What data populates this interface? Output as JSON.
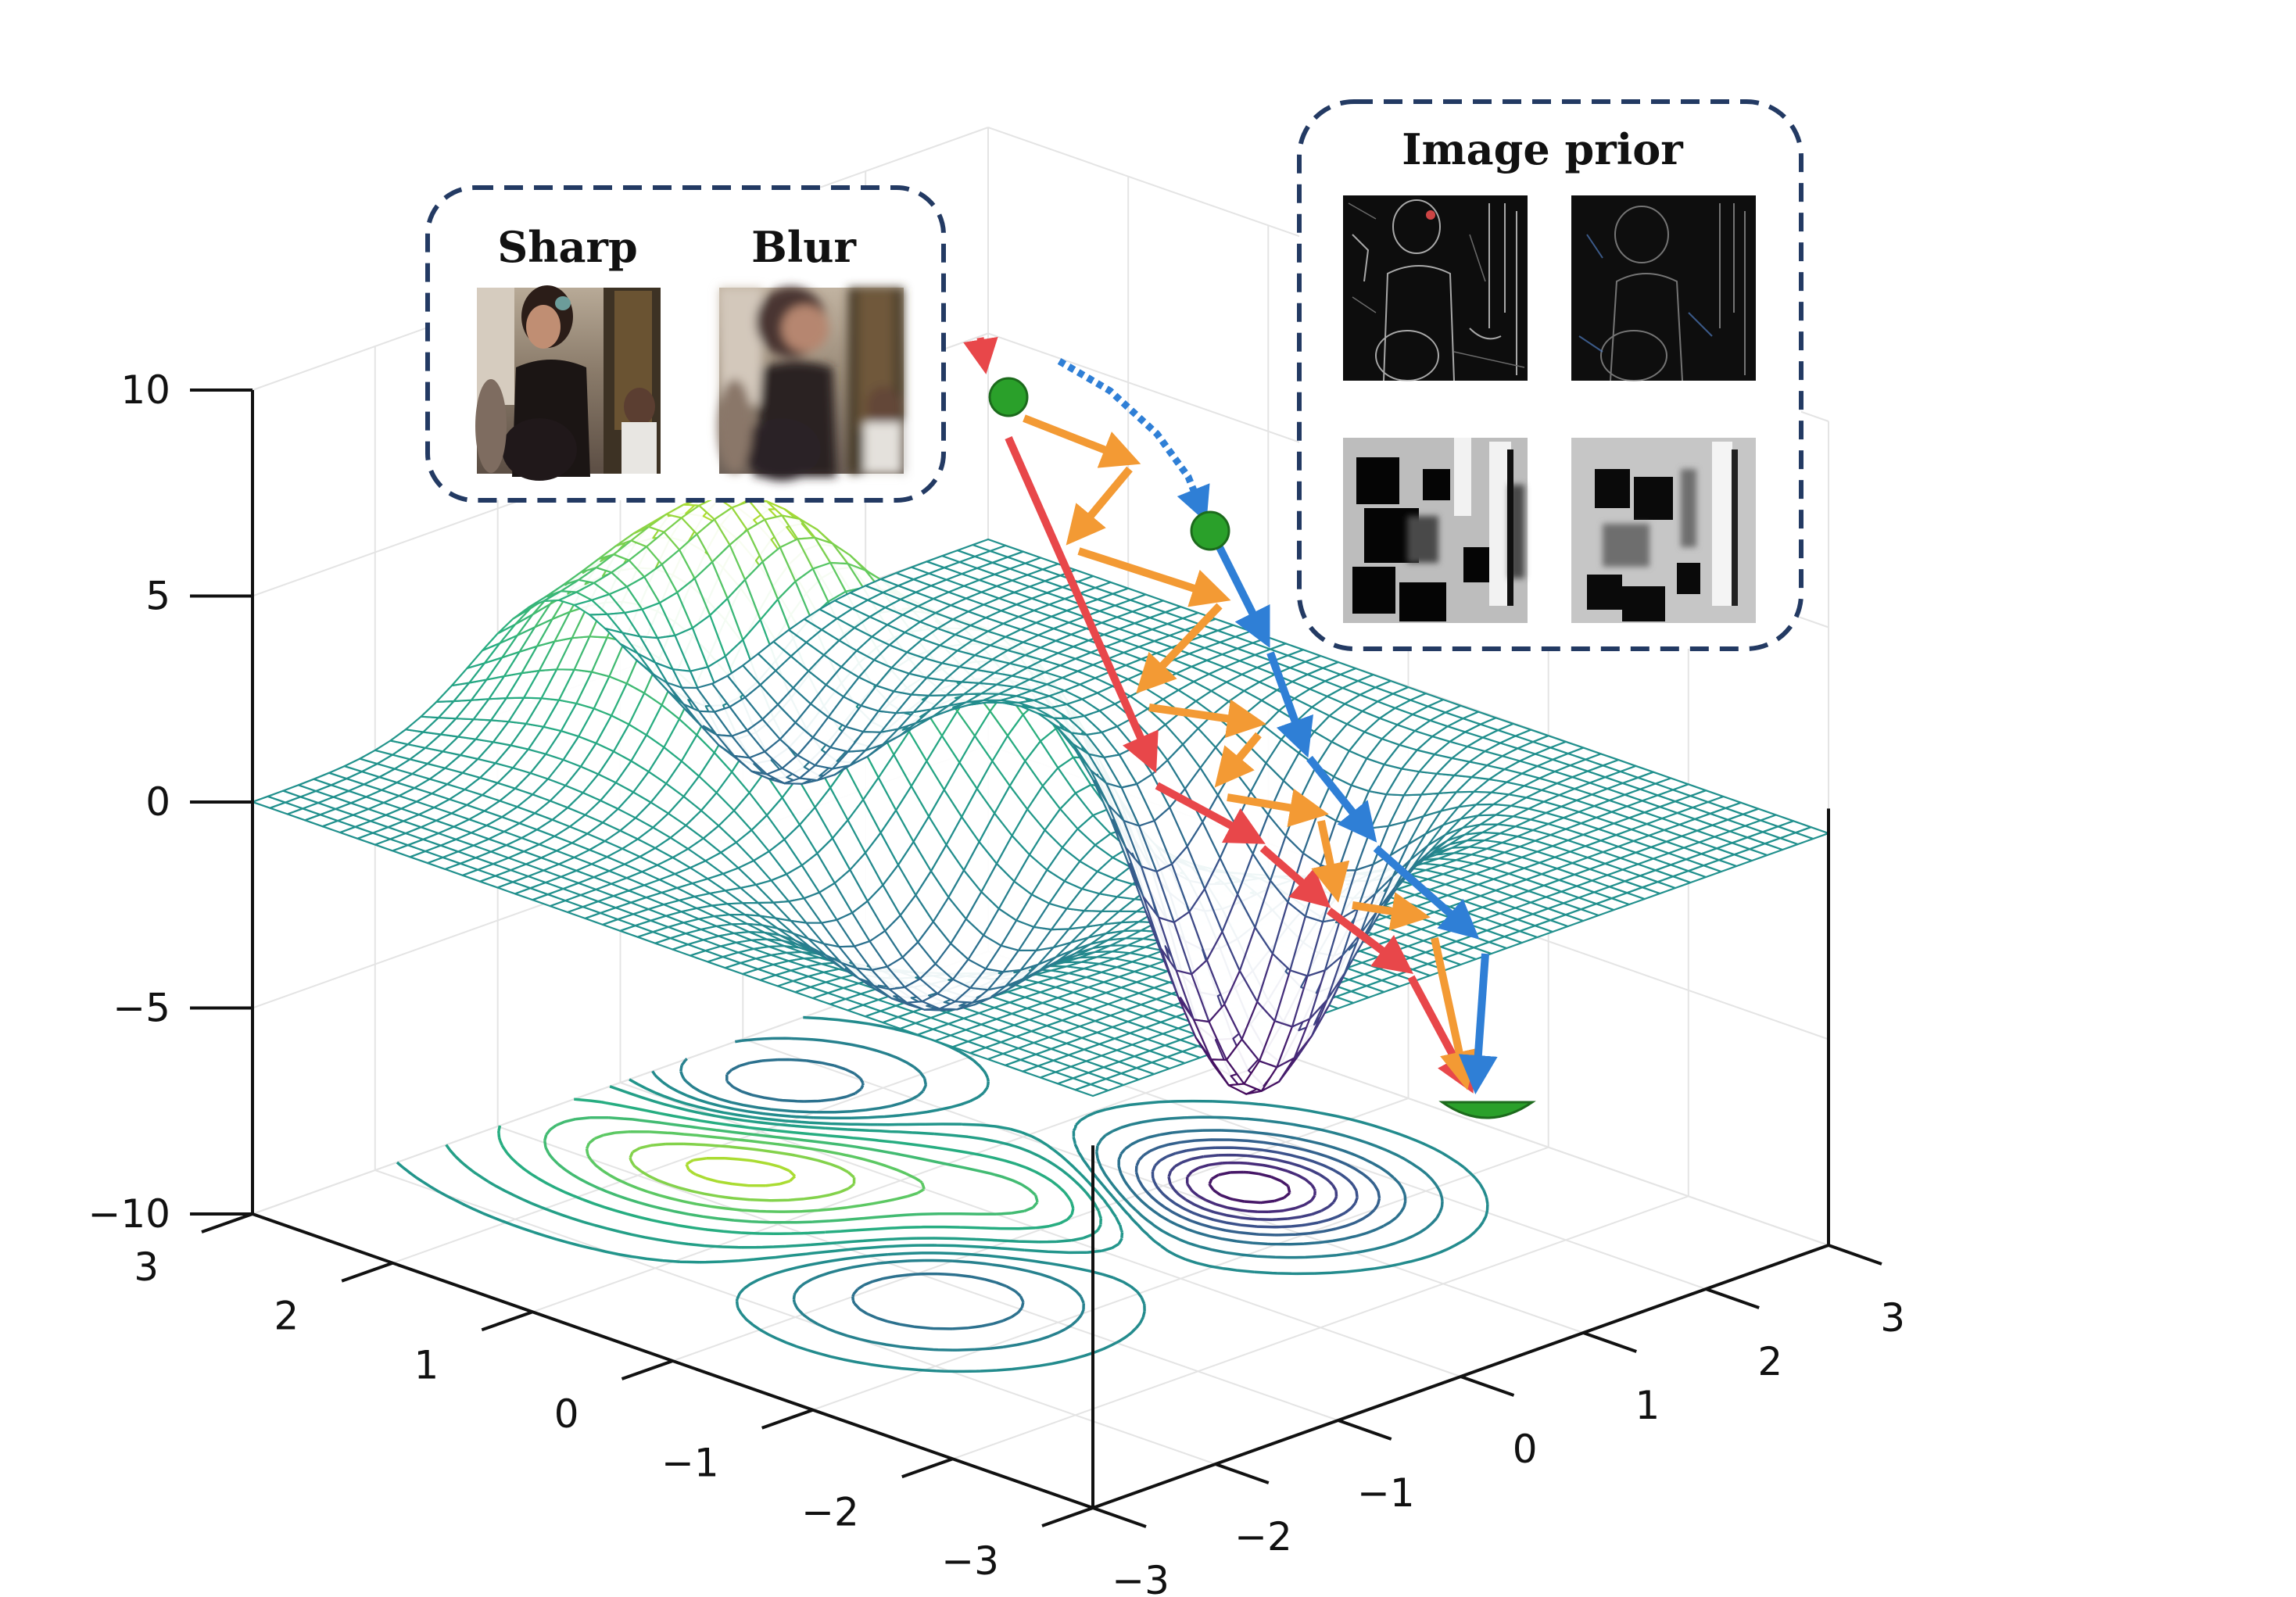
{
  "figure": {
    "z_axis": {
      "range": [
        -10,
        10
      ],
      "ticks": [
        "10",
        "5",
        "0",
        "−5",
        "−10"
      ]
    },
    "y_axis": {
      "range": [
        -3,
        3
      ],
      "ticks": [
        "3",
        "2",
        "1",
        "0",
        "−1",
        "−2",
        "−3"
      ]
    },
    "x_axis": {
      "range": [
        -3,
        3
      ],
      "ticks": [
        "−3",
        "−2",
        "−1",
        "0",
        "1",
        "2",
        "3"
      ]
    },
    "surface": {
      "type": "wireframe",
      "colormap": "viridis",
      "peak_height": 8,
      "minimum_depth": -8
    },
    "contours": {
      "projected_on": "floor",
      "colormap": "viridis"
    }
  },
  "panels": {
    "left": {
      "labels": [
        "Sharp",
        "Blur"
      ]
    },
    "right": {
      "title": "Image prior"
    }
  },
  "paths": {
    "red": {
      "color": "#e8474a"
    },
    "orange": {
      "color": "#f39a34"
    },
    "blue": {
      "color": "#2f7fd6"
    },
    "markers": {
      "color": "#2aa02a"
    }
  }
}
